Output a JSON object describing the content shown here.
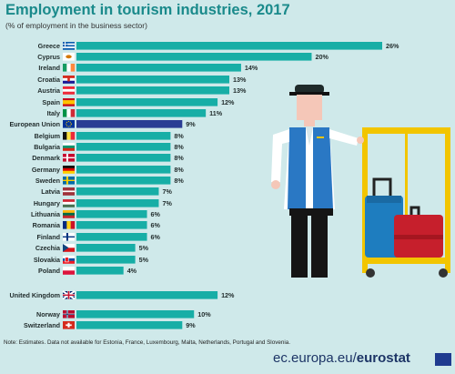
{
  "header": {
    "title": "Employment in tourism industries, 2017",
    "subtitle": "(% of employment in the business sector)"
  },
  "footer": {
    "note": "Note: Estimates. Data not available for Estonia, France, Luxembourg, Malta, Netherlands, Portugal and Slovenia.",
    "source_domain": "ec.europa.eu/",
    "source_brand": "eurostat"
  },
  "colors": {
    "bar": "#17aea6",
    "bar_eu": "#2a3d94",
    "background": "#cfe9ea",
    "title": "#1a8a8b"
  },
  "chart_data": {
    "type": "bar",
    "orientation": "horizontal",
    "unit": "%",
    "title": "Employment in tourism industries, 2017",
    "subtitle": "(% of employment in the business sector)",
    "categories": [
      "Greece",
      "Cyprus",
      "Ireland",
      "Croatia",
      "Austria",
      "Spain",
      "Italy",
      "European Union",
      "Belgium",
      "Bulgaria",
      "Denmark",
      "Germany",
      "Sweden",
      "Latvia",
      "Hungary",
      "Lithuania",
      "Romania",
      "Finland",
      "Czechia",
      "Slovakia",
      "Poland",
      "United Kingdom",
      "Norway",
      "Switzerland"
    ],
    "values": [
      26,
      20,
      14,
      13,
      13,
      12,
      11,
      9,
      8,
      8,
      8,
      8,
      8,
      7,
      7,
      6,
      6,
      6,
      5,
      5,
      4,
      12,
      10,
      9
    ],
    "value_labels": [
      "26%",
      "20%",
      "14%",
      "13%",
      "13%",
      "12%",
      "11%",
      "9%",
      "8%",
      "8%",
      "8%",
      "8%",
      "8%",
      "7%",
      "7%",
      "6%",
      "6%",
      "6%",
      "5%",
      "5%",
      "4%",
      "12%",
      "10%",
      "9%"
    ],
    "highlight": [
      "European Union"
    ],
    "flags": [
      "greece-flag",
      "cyprus-flag",
      "ireland-flag",
      "croatia-flag",
      "austria-flag",
      "spain-flag",
      "italy-flag",
      "eu-flag",
      "belgium-flag",
      "bulgaria-flag",
      "denmark-flag",
      "germany-flag",
      "sweden-flag",
      "latvia-flag",
      "hungary-flag",
      "lithuania-flag",
      "romania-flag",
      "finland-flag",
      "czechia-flag",
      "slovakia-flag",
      "poland-flag",
      "uk-flag",
      "norway-flag",
      "switzerland-flag"
    ],
    "xlim": [
      0,
      26
    ],
    "grid": false,
    "legend": "none"
  }
}
